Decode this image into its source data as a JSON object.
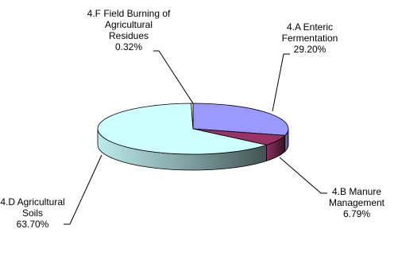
{
  "chart_data": {
    "type": "pie",
    "title": "",
    "slices": [
      {
        "label_lines": [
          "4.A Enteric",
          "Fermentation"
        ],
        "value_text": "29.20%",
        "value": 29.2,
        "color": "#9999ff"
      },
      {
        "label_lines": [
          "4.B Manure",
          "Management"
        ],
        "value_text": "6.79%",
        "value": 6.79,
        "color": "#993366"
      },
      {
        "label_lines": [
          "4.D Agricultural",
          "Soils"
        ],
        "value_text": "63.70%",
        "value": 63.7,
        "color": "#ccffff"
      },
      {
        "label_lines": [
          "4.F Field Burning of",
          "Agricultural",
          "Residues"
        ],
        "value_text": "0.32%",
        "value": 0.32,
        "color": "#ffffcc"
      }
    ]
  }
}
